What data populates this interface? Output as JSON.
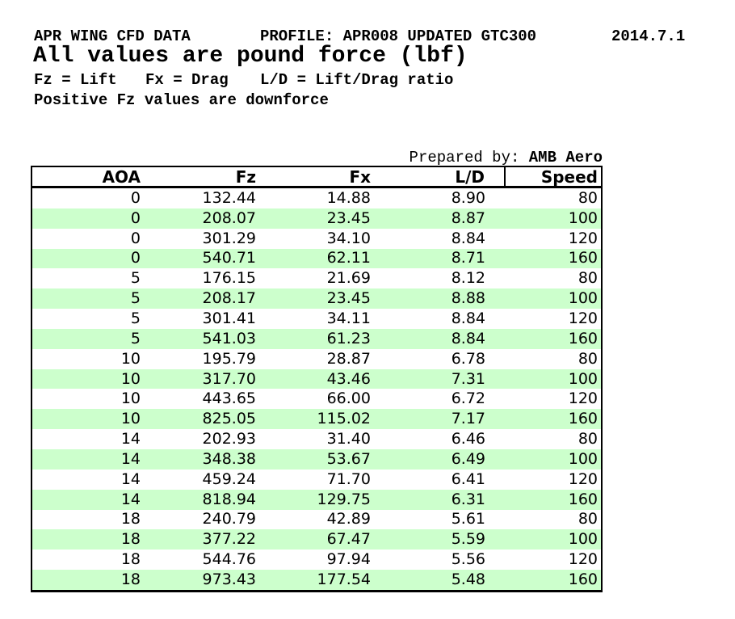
{
  "header": {
    "line1": {
      "title": "APR WING CFD DATA",
      "profile": "PROFILE: APR008 UPDATED GTC300",
      "date": "2014.7.1"
    },
    "line2": "All values are pound force (lbf)",
    "line3": {
      "fz_def": "Fz = Lift",
      "fx_def": "Fx = Drag",
      "ld_def": "L/D = Lift/Drag ratio"
    },
    "line4": "Positive Fz values are downforce"
  },
  "prepared_by": {
    "label": "Prepared by:",
    "value": "AMB Aero"
  },
  "table": {
    "columns": [
      "AOA",
      "Fz",
      "Fx",
      "L/D",
      "Speed"
    ],
    "col_keys": [
      "aoa",
      "fz",
      "fx",
      "ld",
      "speed"
    ],
    "stripe_color": "#CCFFCC",
    "border_color": "#000000",
    "rows": [
      [
        "0",
        "132.44",
        "14.88",
        "8.90",
        "80"
      ],
      [
        "0",
        "208.07",
        "23.45",
        "8.87",
        "100"
      ],
      [
        "0",
        "301.29",
        "34.10",
        "8.84",
        "120"
      ],
      [
        "0",
        "540.71",
        "62.11",
        "8.71",
        "160"
      ],
      [
        "5",
        "176.15",
        "21.69",
        "8.12",
        "80"
      ],
      [
        "5",
        "208.17",
        "23.45",
        "8.88",
        "100"
      ],
      [
        "5",
        "301.41",
        "34.11",
        "8.84",
        "120"
      ],
      [
        "5",
        "541.03",
        "61.23",
        "8.84",
        "160"
      ],
      [
        "10",
        "195.79",
        "28.87",
        "6.78",
        "80"
      ],
      [
        "10",
        "317.70",
        "43.46",
        "7.31",
        "100"
      ],
      [
        "10",
        "443.65",
        "66.00",
        "6.72",
        "120"
      ],
      [
        "10",
        "825.05",
        "115.02",
        "7.17",
        "160"
      ],
      [
        "14",
        "202.93",
        "31.40",
        "6.46",
        "80"
      ],
      [
        "14",
        "348.38",
        "53.67",
        "6.49",
        "100"
      ],
      [
        "14",
        "459.24",
        "71.70",
        "6.41",
        "120"
      ],
      [
        "14",
        "818.94",
        "129.75",
        "6.31",
        "160"
      ],
      [
        "18",
        "240.79",
        "42.89",
        "5.61",
        "80"
      ],
      [
        "18",
        "377.22",
        "67.47",
        "5.59",
        "100"
      ],
      [
        "18",
        "544.76",
        "97.94",
        "5.56",
        "120"
      ],
      [
        "18",
        "973.43",
        "177.54",
        "5.48",
        "160"
      ]
    ]
  }
}
